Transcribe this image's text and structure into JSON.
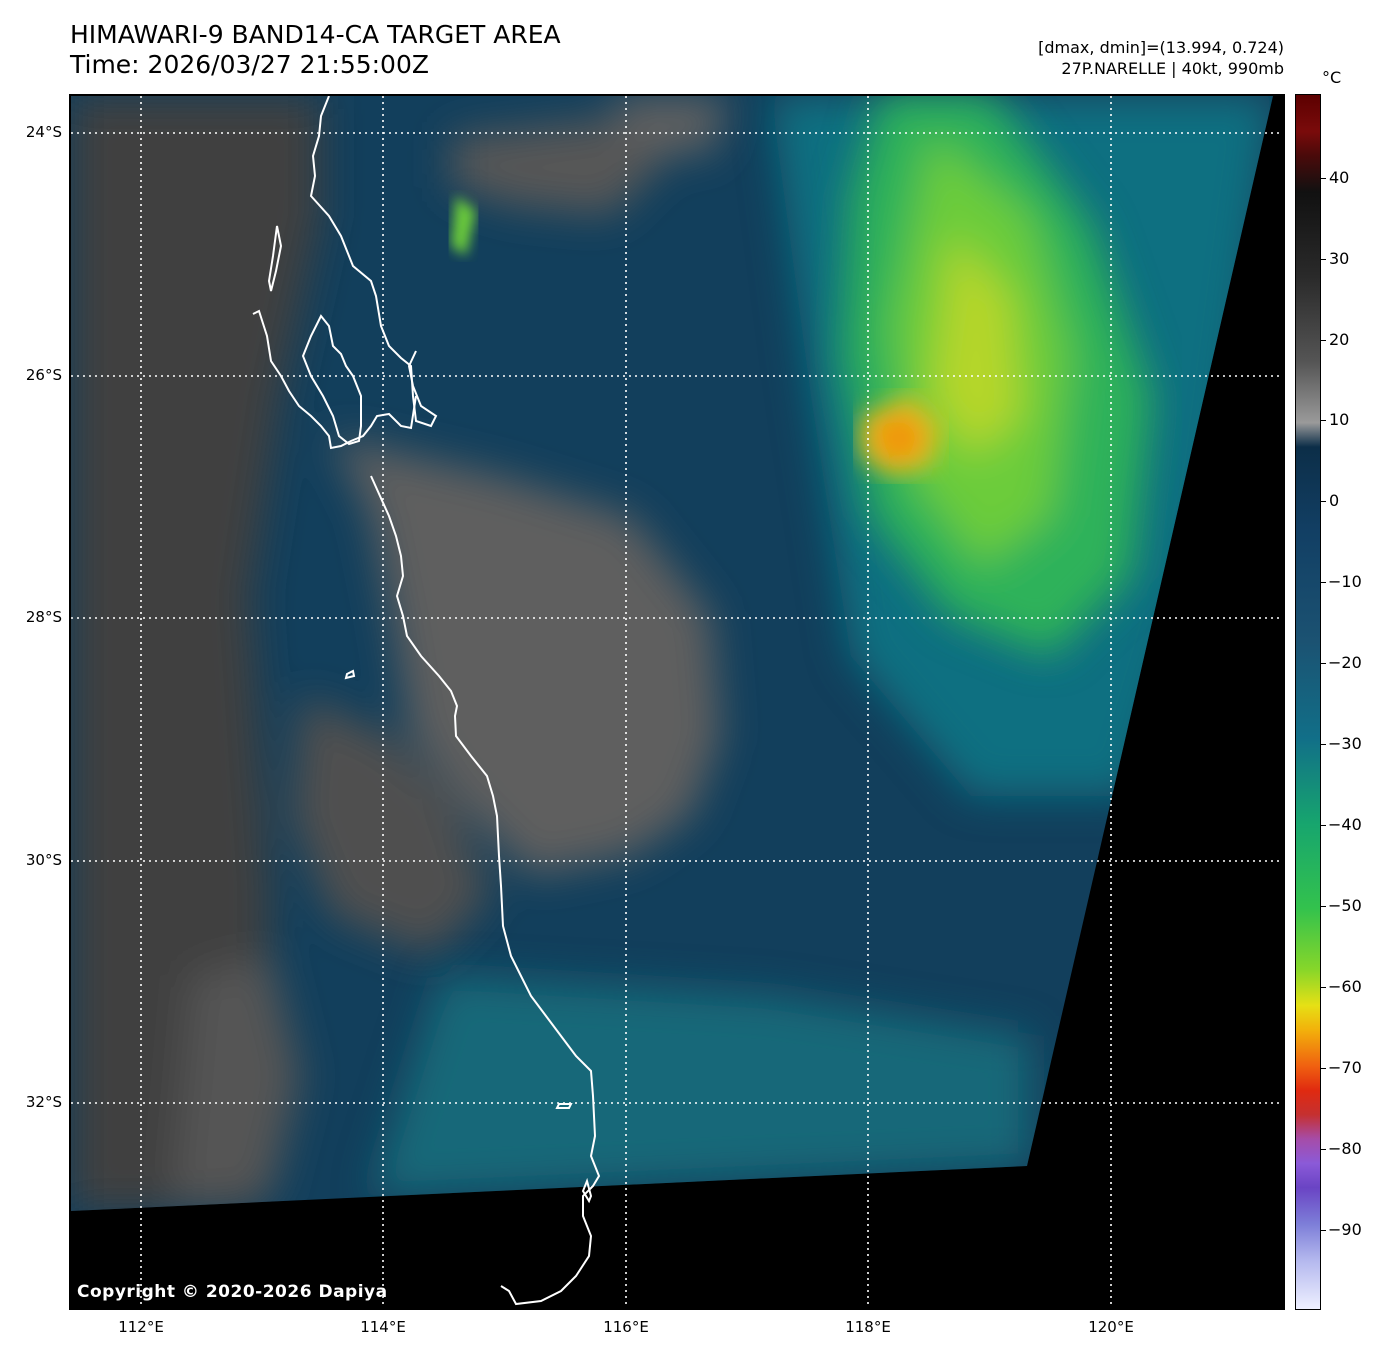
{
  "header": {
    "title_line1": "HIMAWARI-9 BAND14-CA TARGET AREA",
    "title_line2": "Time: 2026/03/27 21:55:00Z",
    "info_line1": "[dmax, dmin]=(13.994, 0.724)",
    "info_line2": "27P.NARELLE | 40kt, 990mb"
  },
  "map": {
    "lat_labels": [
      "24°S",
      "26°S",
      "28°S",
      "30°S",
      "32°S"
    ],
    "lon_labels": [
      "112°E",
      "114°E",
      "116°E",
      "118°E",
      "120°E"
    ],
    "copyright": "Copyright © 2020-2026 Dapiya"
  },
  "colorbar": {
    "unit": "°C",
    "ticks": [
      "40",
      "30",
      "20",
      "10",
      "0",
      "−10",
      "−20",
      "−30",
      "−40",
      "−50",
      "−60",
      "−70",
      "−80",
      "−90"
    ]
  }
}
